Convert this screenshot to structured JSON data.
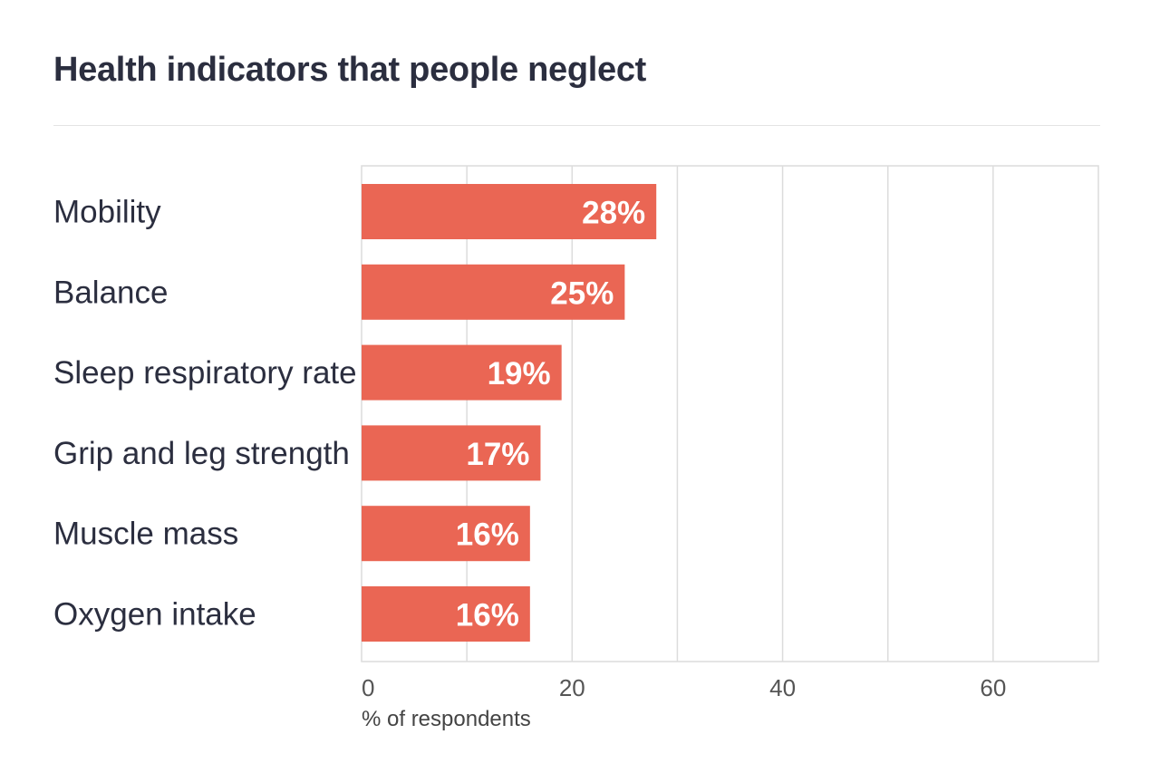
{
  "chart_data": {
    "type": "bar",
    "orientation": "horizontal",
    "title": "Health indicators that people neglect",
    "categories": [
      "Mobility",
      "Balance",
      "Sleep respiratory rate",
      "Grip and leg strength",
      "Muscle mass",
      "Oxygen intake"
    ],
    "values": [
      28,
      25,
      19,
      17,
      16,
      16
    ],
    "data_labels": [
      "28%",
      "25%",
      "19%",
      "17%",
      "16%",
      "16%"
    ],
    "xlabel": "% of respondents",
    "ylabel": "",
    "xlim": [
      0,
      70
    ],
    "xticks": [
      0,
      20,
      40,
      60
    ],
    "gridlines_every": 10,
    "grid": true,
    "colors": {
      "bar": "#EA6654",
      "text": "#2b2e3f",
      "grid": "#dcdcdc"
    }
  }
}
